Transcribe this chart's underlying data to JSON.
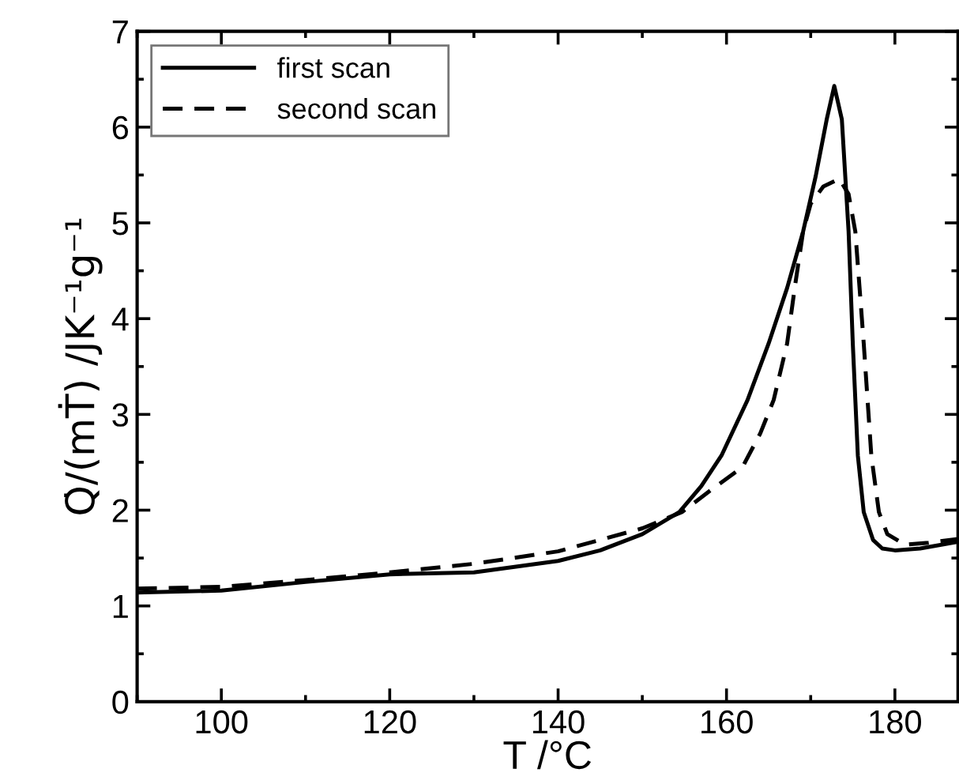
{
  "chart_data": {
    "type": "line",
    "xlabel": "T /°C",
    "ylabel": "Q̇/(mṪ) /JK⁻¹g⁻¹",
    "xlim": [
      90,
      187.5
    ],
    "xticks": [
      100,
      120,
      140,
      160,
      180
    ],
    "ylim": [
      0,
      7
    ],
    "yticks": [
      0,
      1,
      2,
      3,
      4,
      5,
      6,
      7
    ],
    "grid": false,
    "legend": "top left",
    "marker": "none",
    "series": [
      {
        "name": "first scan",
        "color": "#000000",
        "line_style": "solid",
        "x": [
          90,
          100,
          110,
          120,
          130,
          140,
          145,
          150,
          154.4,
          157,
          159.4,
          162.5,
          165,
          167.2,
          169.1,
          170.6,
          171.9,
          172.8,
          173.7,
          174.5,
          175,
          175.6,
          176.3,
          177.4,
          178.5,
          180,
          183,
          187.5
        ],
        "values": [
          1.14,
          1.16,
          1.25,
          1.33,
          1.35,
          1.47,
          1.58,
          1.75,
          1.98,
          2.25,
          2.57,
          3.15,
          3.74,
          4.32,
          4.91,
          5.49,
          6.08,
          6.43,
          6.08,
          4.91,
          3.74,
          2.57,
          1.98,
          1.69,
          1.6,
          1.58,
          1.6,
          1.67
        ]
      },
      {
        "name": "second scan",
        "color": "#000000",
        "line_style": "dashed",
        "x": [
          90,
          100,
          110,
          120,
          130,
          140,
          150,
          154.7,
          158,
          161.9,
          164,
          165.6,
          167.2,
          168.1,
          169.1,
          170,
          171.5,
          173.4,
          174.5,
          175.3,
          176.3,
          177.2,
          178.1,
          179.1,
          181.2,
          184,
          187.5
        ],
        "values": [
          1.18,
          1.2,
          1.27,
          1.35,
          1.44,
          1.57,
          1.81,
          1.98,
          2.2,
          2.45,
          2.8,
          3.15,
          3.74,
          4.32,
          4.91,
          5.2,
          5.38,
          5.46,
          5.3,
          4.91,
          3.74,
          2.57,
          1.98,
          1.75,
          1.64,
          1.66,
          1.7
        ]
      }
    ]
  }
}
